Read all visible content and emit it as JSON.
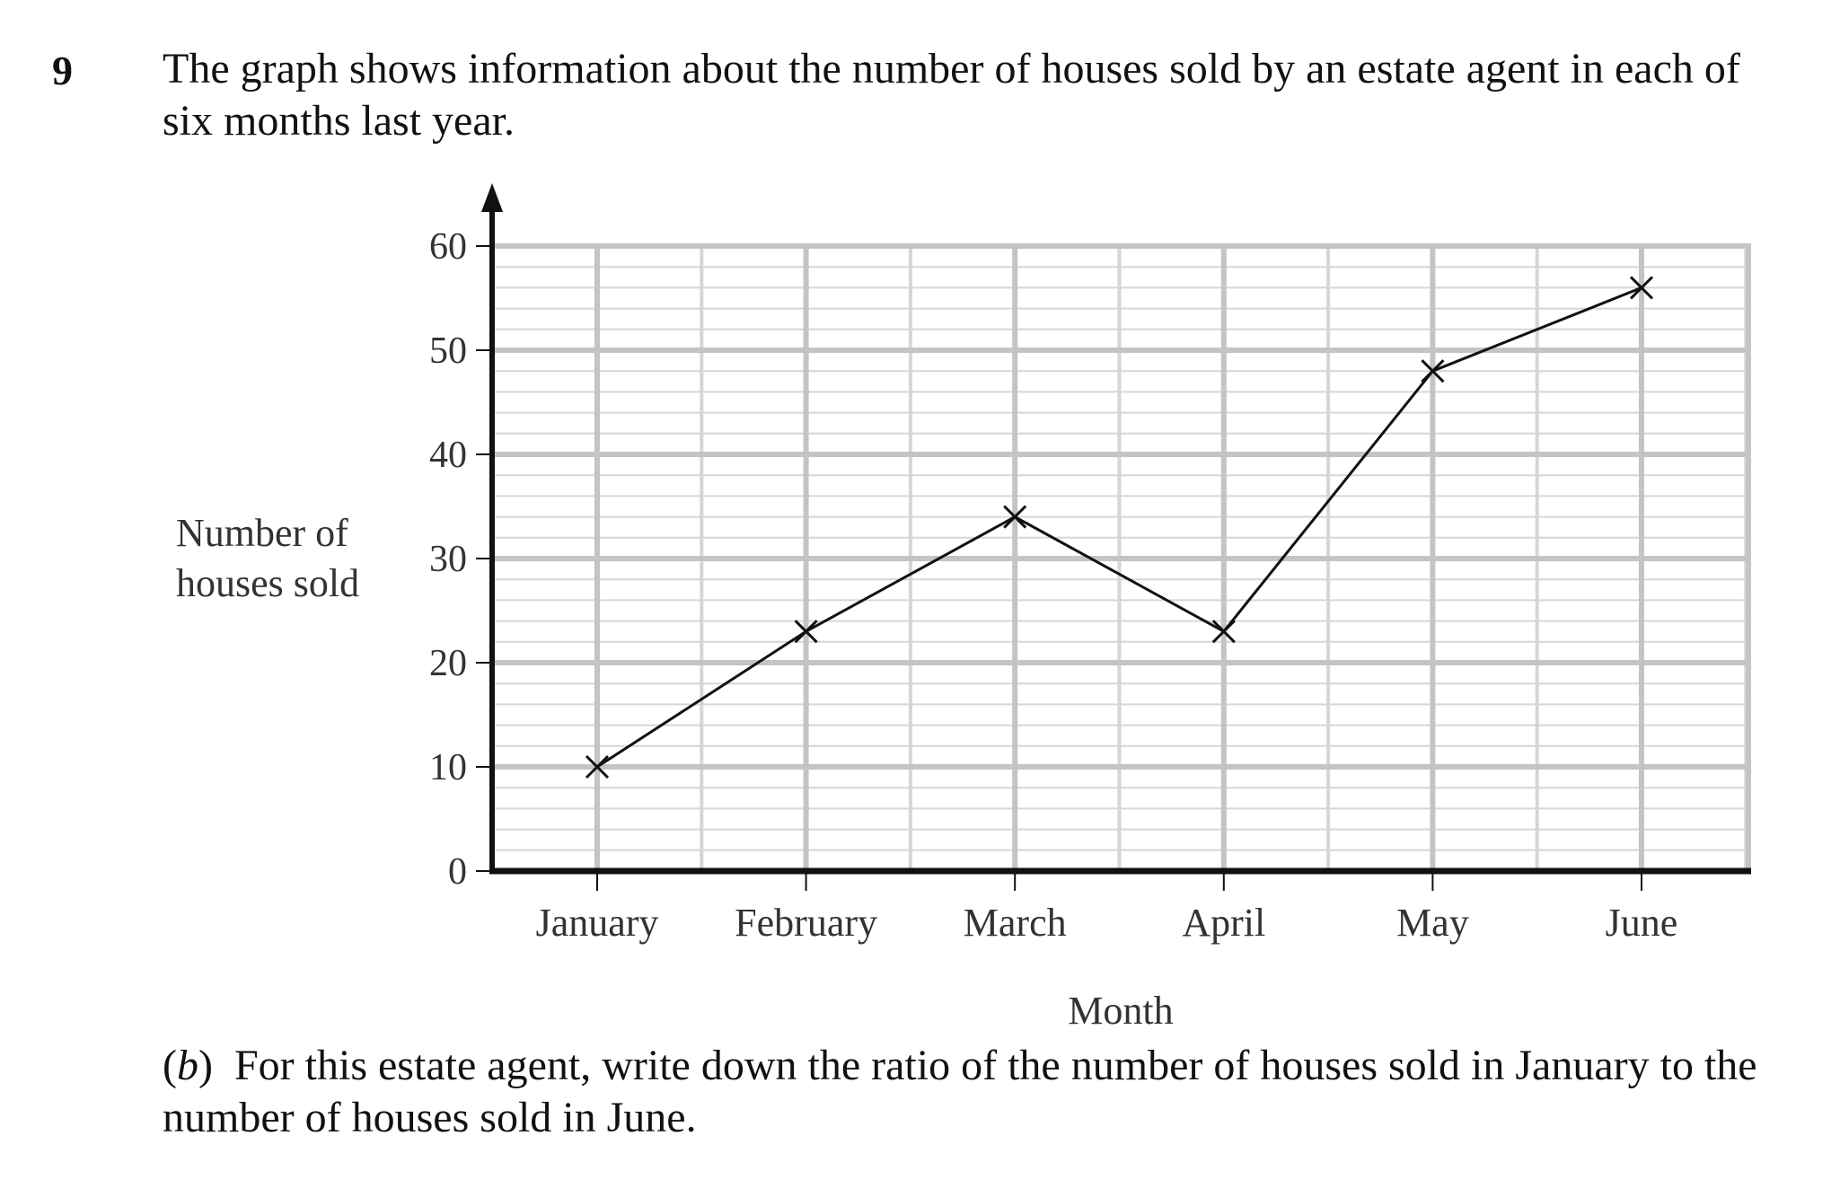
{
  "question": {
    "number": "9",
    "intro": "The graph shows information about the number of houses sold by an estate agent in each of six months last year.",
    "part_label_open": "(",
    "part_letter": "b",
    "part_label_close": ")",
    "part_text": "For this estate agent, write down the ratio of the number of houses sold in January to the number of houses sold in June."
  },
  "chart_data": {
    "type": "line",
    "title": "",
    "xlabel": "Month",
    "ylabel_lines": [
      "Number of",
      "houses sold"
    ],
    "categories": [
      "January",
      "February",
      "March",
      "April",
      "May",
      "June"
    ],
    "series": [
      {
        "values": [
          10,
          23,
          34,
          23,
          48,
          56
        ]
      }
    ],
    "ylim": [
      0,
      60
    ],
    "yticks": [
      0,
      10,
      20,
      30,
      40,
      50,
      60
    ],
    "marker": "cross",
    "grid": true,
    "legend": "none",
    "colors": {
      "line": "#111111",
      "axis": "#111111",
      "grid_major": "#c4c4c4",
      "grid_minor": "#d6d6d6"
    }
  }
}
